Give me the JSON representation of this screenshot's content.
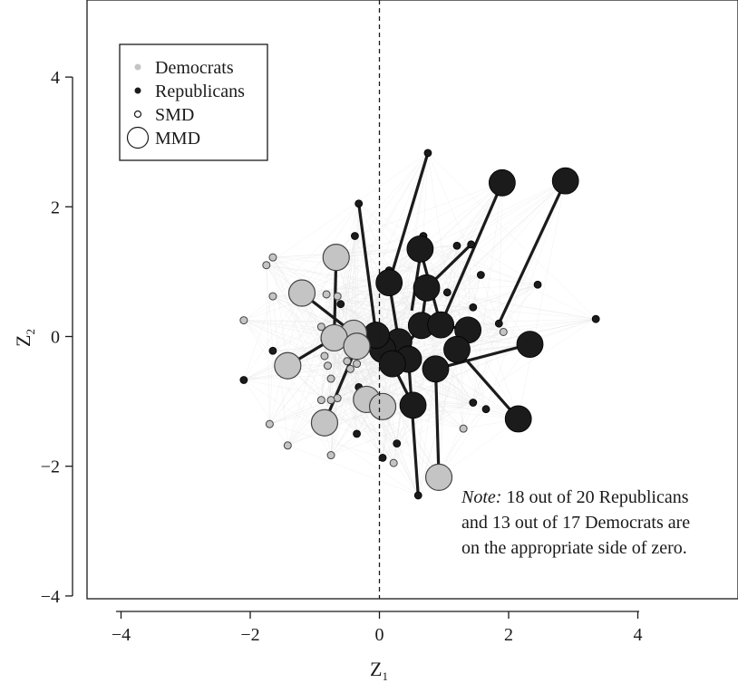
{
  "chart_data": {
    "type": "scatter",
    "xlabel": "Z",
    "xlabel_sub": "1",
    "ylabel": "Z",
    "ylabel_sub": "2",
    "xlim": [
      -4.5,
      5.4
    ],
    "ylim": [
      -4.1,
      5.1
    ],
    "xticks": [
      -4,
      -2,
      0,
      2,
      4
    ],
    "yticks": [
      -4,
      -2,
      0,
      2,
      4
    ],
    "xtick_labels": [
      "−4",
      "−2",
      "0",
      "2",
      "4"
    ],
    "ytick_labels": [
      "−4",
      "−2",
      "0",
      "2",
      "4"
    ],
    "reference_line": {
      "x": 0,
      "style": "dashed"
    },
    "grid": false,
    "legend": {
      "placement": "top-left",
      "entries": [
        "Democrats",
        "Republicans",
        "SMD",
        "MMD"
      ]
    },
    "colors": {
      "Democrats": "#c4c4c4",
      "Republicans": "#1b1b1b",
      "edges": "#e4e4e4"
    },
    "note": {
      "italic": "Note:",
      "lines": [
        " 18 out of 20 Republicans",
        "and 13 out of 17 Democrats are",
        "on the appropriate side of zero."
      ]
    },
    "series": [
      {
        "name": "Republicans",
        "points": [
          {
            "x": 1.9,
            "y": 2.37,
            "size": "MMD"
          },
          {
            "x": 2.88,
            "y": 2.4,
            "size": "MMD"
          },
          {
            "x": 0.63,
            "y": 1.35,
            "size": "MMD"
          },
          {
            "x": 0.15,
            "y": 0.83,
            "size": "MMD"
          },
          {
            "x": 0.73,
            "y": 0.75,
            "size": "MMD"
          },
          {
            "x": 0.65,
            "y": 0.17,
            "size": "MMD"
          },
          {
            "x": 0.95,
            "y": 0.18,
            "size": "MMD"
          },
          {
            "x": 1.37,
            "y": 0.1,
            "size": "MMD"
          },
          {
            "x": 1.2,
            "y": -0.2,
            "size": "MMD"
          },
          {
            "x": 2.33,
            "y": -0.12,
            "size": "MMD"
          },
          {
            "x": 0.3,
            "y": -0.08,
            "size": "MMD"
          },
          {
            "x": 0.05,
            "y": -0.2,
            "size": "MMD"
          },
          {
            "x": 0.45,
            "y": -0.35,
            "size": "MMD"
          },
          {
            "x": 0.2,
            "y": -0.42,
            "size": "MMD"
          },
          {
            "x": 0.87,
            "y": -0.5,
            "size": "MMD"
          },
          {
            "x": 0.52,
            "y": -1.06,
            "size": "MMD"
          },
          {
            "x": 2.15,
            "y": -1.27,
            "size": "MMD"
          },
          {
            "x": -0.05,
            "y": 0.02,
            "size": "MMD"
          },
          {
            "x": 0.75,
            "y": 2.83,
            "size": "SMD"
          },
          {
            "x": -0.32,
            "y": 2.05,
            "size": "SMD"
          },
          {
            "x": -0.38,
            "y": 1.55,
            "size": "SMD"
          },
          {
            "x": 1.2,
            "y": 1.4,
            "size": "SMD"
          },
          {
            "x": 1.42,
            "y": 1.42,
            "size": "SMD"
          },
          {
            "x": 0.68,
            "y": 1.55,
            "size": "SMD"
          },
          {
            "x": 1.57,
            "y": 0.95,
            "size": "SMD"
          },
          {
            "x": 0.15,
            "y": 1.02,
            "size": "SMD"
          },
          {
            "x": 1.05,
            "y": 0.68,
            "size": "SMD"
          },
          {
            "x": 2.45,
            "y": 0.8,
            "size": "SMD"
          },
          {
            "x": 3.35,
            "y": 0.27,
            "size": "SMD"
          },
          {
            "x": 1.45,
            "y": 0.45,
            "size": "SMD"
          },
          {
            "x": 1.85,
            "y": 0.2,
            "size": "SMD"
          },
          {
            "x": -0.6,
            "y": 0.5,
            "size": "SMD"
          },
          {
            "x": -0.85,
            "y": -0.05,
            "size": "SMD"
          },
          {
            "x": -1.65,
            "y": -0.22,
            "size": "SMD"
          },
          {
            "x": -2.1,
            "y": -0.67,
            "size": "SMD"
          },
          {
            "x": 1.45,
            "y": -1.02,
            "size": "SMD"
          },
          {
            "x": 1.65,
            "y": -1.12,
            "size": "SMD"
          },
          {
            "x": 0.27,
            "y": -1.65,
            "size": "SMD"
          },
          {
            "x": 0.05,
            "y": -1.87,
            "size": "SMD"
          },
          {
            "x": 0.6,
            "y": -2.45,
            "size": "SMD"
          },
          {
            "x": -0.35,
            "y": -1.5,
            "size": "SMD"
          },
          {
            "x": -0.32,
            "y": -0.78,
            "size": "SMD"
          }
        ]
      },
      {
        "name": "Democrats",
        "points": [
          {
            "x": -0.67,
            "y": 1.22,
            "size": "MMD"
          },
          {
            "x": -1.2,
            "y": 0.67,
            "size": "MMD"
          },
          {
            "x": -0.4,
            "y": 0.05,
            "size": "MMD"
          },
          {
            "x": -0.7,
            "y": -0.02,
            "size": "MMD"
          },
          {
            "x": -0.35,
            "y": -0.15,
            "size": "MMD"
          },
          {
            "x": -1.42,
            "y": -0.45,
            "size": "MMD"
          },
          {
            "x": -0.2,
            "y": -0.97,
            "size": "MMD"
          },
          {
            "x": 0.05,
            "y": -1.08,
            "size": "MMD"
          },
          {
            "x": -0.85,
            "y": -1.33,
            "size": "MMD"
          },
          {
            "x": 0.92,
            "y": -2.17,
            "size": "MMD"
          },
          {
            "x": -1.65,
            "y": 1.22,
            "size": "SMD"
          },
          {
            "x": -1.75,
            "y": 1.1,
            "size": "SMD"
          },
          {
            "x": -1.65,
            "y": 0.62,
            "size": "SMD"
          },
          {
            "x": -2.1,
            "y": 0.25,
            "size": "SMD"
          },
          {
            "x": -0.82,
            "y": 0.65,
            "size": "SMD"
          },
          {
            "x": -0.65,
            "y": 0.62,
            "size": "SMD"
          },
          {
            "x": -0.9,
            "y": 0.15,
            "size": "SMD"
          },
          {
            "x": -0.7,
            "y": 0.12,
            "size": "SMD"
          },
          {
            "x": -0.6,
            "y": 0.1,
            "size": "SMD"
          },
          {
            "x": -0.85,
            "y": -0.3,
            "size": "SMD"
          },
          {
            "x": -0.8,
            "y": -0.45,
            "size": "SMD"
          },
          {
            "x": -0.75,
            "y": -0.65,
            "size": "SMD"
          },
          {
            "x": -0.5,
            "y": -0.38,
            "size": "SMD"
          },
          {
            "x": -0.65,
            "y": -0.95,
            "size": "SMD"
          },
          {
            "x": -0.75,
            "y": -0.98,
            "size": "SMD"
          },
          {
            "x": -0.9,
            "y": -0.98,
            "size": "SMD"
          },
          {
            "x": -1.7,
            "y": -1.35,
            "size": "SMD"
          },
          {
            "x": -1.42,
            "y": -1.68,
            "size": "SMD"
          },
          {
            "x": -0.75,
            "y": -1.83,
            "size": "SMD"
          },
          {
            "x": 1.3,
            "y": -1.42,
            "size": "SMD"
          },
          {
            "x": 0.22,
            "y": -1.95,
            "size": "SMD"
          },
          {
            "x": 1.92,
            "y": 0.07,
            "size": "SMD"
          },
          {
            "x": -0.35,
            "y": -0.42,
            "size": "SMD"
          },
          {
            "x": -0.45,
            "y": -0.5,
            "size": "SMD"
          }
        ]
      }
    ],
    "links": [
      [
        1.9,
        2.37,
        1.0,
        0.3
      ],
      [
        2.88,
        2.4,
        1.85,
        0.2
      ],
      [
        0.63,
        1.35,
        0.95,
        0.18
      ],
      [
        0.73,
        0.75,
        0.65,
        0.17
      ],
      [
        0.15,
        0.83,
        0.3,
        -0.08
      ],
      [
        2.33,
        -0.12,
        0.87,
        -0.5
      ],
      [
        2.15,
        -1.27,
        1.2,
        -0.2
      ],
      [
        0.6,
        -2.45,
        0.45,
        -0.35
      ],
      [
        0.92,
        -2.17,
        0.87,
        -0.5
      ],
      [
        0.52,
        -1.06,
        0.2,
        -0.42
      ],
      [
        -0.85,
        -1.33,
        -0.35,
        -0.15
      ],
      [
        -0.67,
        1.22,
        -0.7,
        -0.02
      ],
      [
        -1.2,
        0.67,
        -0.4,
        0.05
      ],
      [
        0.05,
        -1.08,
        -0.2,
        -0.97
      ],
      [
        0.75,
        2.83,
        0.15,
        0.83
      ],
      [
        1.42,
        1.42,
        0.73,
        0.75
      ],
      [
        -0.32,
        2.05,
        -0.05,
        0.02
      ],
      [
        1.37,
        0.1,
        0.95,
        0.18
      ],
      [
        0.05,
        -0.2,
        0.45,
        -0.35
      ],
      [
        0.68,
        1.55,
        0.5,
        0.4
      ],
      [
        -1.42,
        -0.45,
        -0.7,
        -0.02
      ],
      [
        -0.4,
        0.05,
        0.3,
        -0.08
      ],
      [
        0.65,
        0.17,
        0.2,
        -0.42
      ]
    ]
  }
}
